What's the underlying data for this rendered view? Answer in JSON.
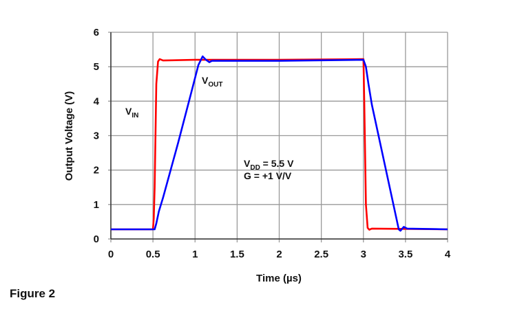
{
  "caption": "Figure 2",
  "chart_data": {
    "type": "line",
    "title": "",
    "xlabel": "Time (µs)",
    "ylabel": "Output Voltage (V)",
    "xlim": [
      0,
      4
    ],
    "ylim": [
      0,
      6
    ],
    "xticks": [
      "0",
      "0.5",
      "1",
      "1.5",
      "2",
      "2.5",
      "3",
      "3.5",
      "4"
    ],
    "yticks": [
      "0",
      "1",
      "2",
      "3",
      "4",
      "5",
      "6"
    ],
    "grid": true,
    "annotations": {
      "vin": {
        "main": "V",
        "sub": "IN"
      },
      "vout": {
        "main": "V",
        "sub": "OUT"
      },
      "vdd": {
        "main": "V",
        "sub": "DD",
        "rest": " = 5.5 V"
      },
      "gain": "G = +1 V/V"
    },
    "series": [
      {
        "name": "VIN",
        "color": "#ff0000",
        "x": [
          0,
          0.5,
          0.51,
          0.52,
          0.54,
          0.56,
          0.58,
          0.62,
          1,
          2,
          3,
          3.01,
          3.03,
          3.05,
          3.07,
          3.1,
          4
        ],
        "y": [
          0.28,
          0.28,
          0.6,
          1.5,
          4.5,
          5.15,
          5.22,
          5.18,
          5.2,
          5.2,
          5.22,
          4,
          1,
          0.32,
          0.27,
          0.3,
          0.28
        ]
      },
      {
        "name": "VOUT",
        "color": "#0000ff",
        "x": [
          0,
          0.52,
          0.54,
          0.57,
          0.62,
          0.8,
          0.95,
          1.04,
          1.09,
          1.13,
          1.17,
          1.2,
          2,
          3,
          3.03,
          3.06,
          3.1,
          3.42,
          3.44,
          3.48,
          3.52,
          4
        ],
        "y": [
          0.28,
          0.28,
          0.45,
          0.8,
          1.2,
          2.8,
          4.2,
          5.05,
          5.3,
          5.2,
          5.13,
          5.17,
          5.17,
          5.2,
          5.0,
          4.5,
          3.9,
          0.28,
          0.24,
          0.35,
          0.3,
          0.28
        ]
      }
    ]
  }
}
